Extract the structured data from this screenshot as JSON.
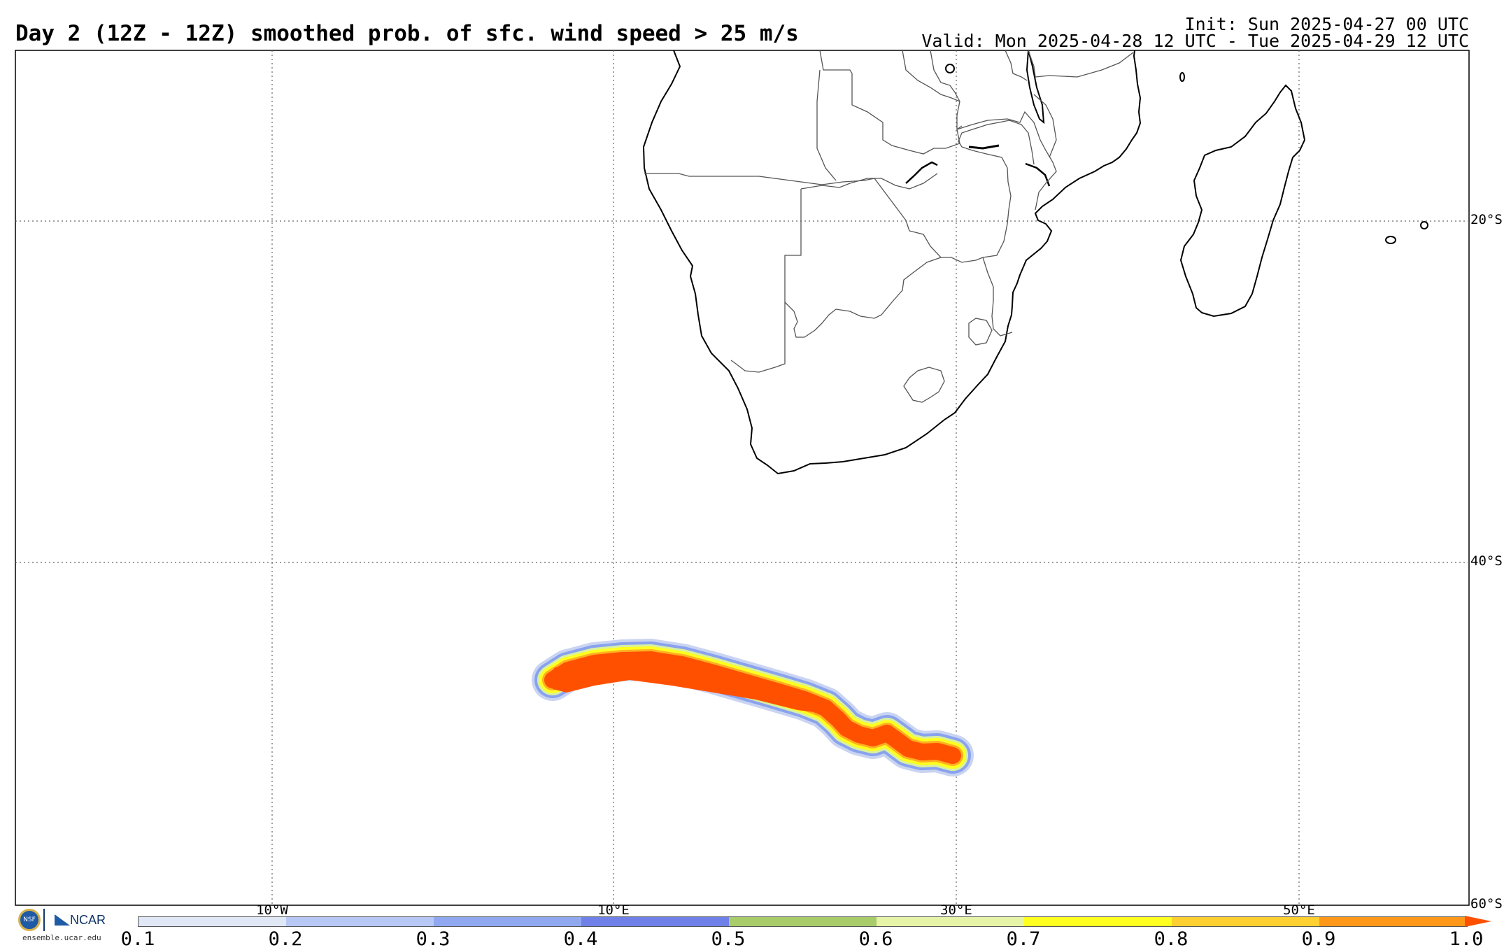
{
  "header": {
    "title": "Day 2 (12Z - 12Z) smoothed prob. of sfc. wind speed > 25 m/s",
    "init": "Init: Sun 2025-04-27 00 UTC",
    "valid": "Valid: Mon 2025-04-28 12 UTC - Tue 2025-04-29 12 UTC"
  },
  "map": {
    "region": "Southern Africa and South Atlantic",
    "lat_labels": [
      "20°S",
      "40°S",
      "60°S"
    ],
    "lon_labels": [
      "10°W",
      "10°E",
      "30°E",
      "50°E"
    ],
    "probability_feature": "elongated band of high probability (>0.9) south-southwest of South Africa"
  },
  "colorbar": {
    "ticks": [
      "0.1",
      "0.2",
      "0.3",
      "0.4",
      "0.5",
      "0.6",
      "0.7",
      "0.8",
      "0.9",
      "1.0"
    ],
    "colors": [
      "#dfe8f4",
      "#b7c8f4",
      "#8fa8f0",
      "#6f80e8",
      "#a8cc6a",
      "#e6f4a8",
      "#ffff20",
      "#ffd030",
      "#ff9818"
    ]
  },
  "logo": {
    "nsf": "NSF",
    "ncar": "NCAR",
    "url": "ensemble.ucar.edu"
  }
}
